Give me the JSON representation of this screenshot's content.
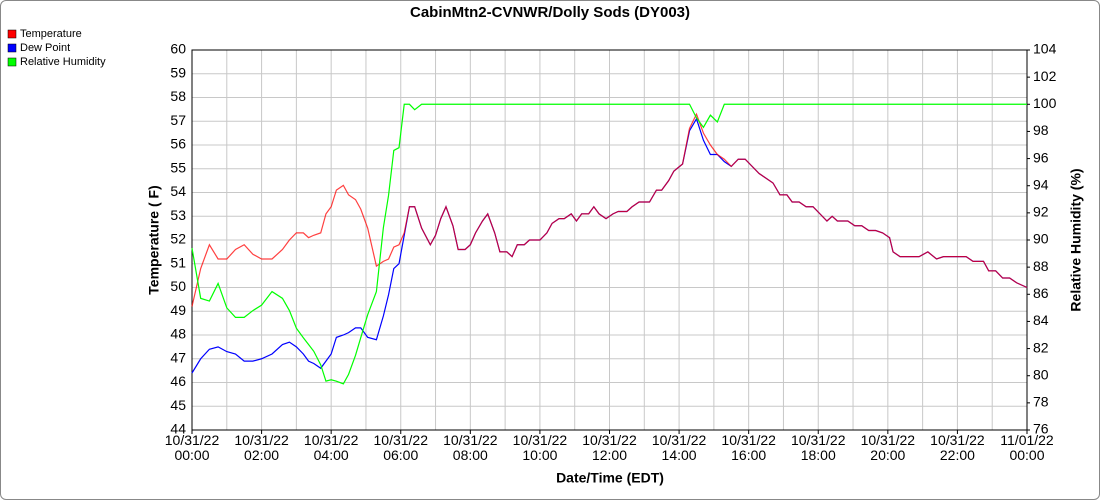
{
  "chart_data": {
    "type": "line",
    "title": "CabinMtn2-CVNWR/Dolly Sods (DY003)",
    "xlabel": "Date/Time (EDT)",
    "ylabel": "Temperature ( F)",
    "y2label": "Relative Humidity (%)",
    "xlim": [
      0,
      24
    ],
    "xticks": [
      {
        "value": 0,
        "label": "10/31/22 00:00"
      },
      {
        "value": 2,
        "label": "10/31/22 02:00"
      },
      {
        "value": 4,
        "label": "10/31/22 04:00"
      },
      {
        "value": 6,
        "label": "10/31/22 06:00"
      },
      {
        "value": 8,
        "label": "10/31/22 08:00"
      },
      {
        "value": 10,
        "label": "10/31/22 10:00"
      },
      {
        "value": 12,
        "label": "10/31/22 12:00"
      },
      {
        "value": 14,
        "label": "10/31/22 14:00"
      },
      {
        "value": 16,
        "label": "10/31/22 16:00"
      },
      {
        "value": 18,
        "label": "10/31/22 18:00"
      },
      {
        "value": 20,
        "label": "10/31/22 20:00"
      },
      {
        "value": 22,
        "label": "10/31/22 22:00"
      },
      {
        "value": 24,
        "label": "11/01/22 00:00"
      }
    ],
    "xminor_ticks": [
      1,
      3,
      5,
      7,
      9,
      11,
      13,
      15,
      17,
      19,
      21,
      23
    ],
    "ylim": [
      44,
      60
    ],
    "yticks": [
      44,
      45,
      46,
      47,
      48,
      49,
      50,
      51,
      52,
      53,
      54,
      55,
      56,
      57,
      58,
      59,
      60
    ],
    "y2lim": [
      76,
      104
    ],
    "y2ticks": [
      76,
      78,
      80,
      82,
      84,
      86,
      88,
      90,
      92,
      94,
      96,
      98,
      100,
      102,
      104
    ],
    "grid": true,
    "legend": "top-left",
    "x": [
      0,
      0.25,
      0.5,
      0.75,
      1,
      1.25,
      1.5,
      1.75,
      2,
      2.3,
      2.6,
      2.8,
      3.0,
      3.2,
      3.35,
      3.5,
      3.7,
      3.85,
      4.0,
      4.15,
      4.35,
      4.5,
      4.7,
      4.85,
      5.05,
      5.3,
      5.5,
      5.65,
      5.8,
      5.95,
      6.1,
      6.25,
      6.4,
      6.6,
      6.85,
      7.0,
      7.15,
      7.3,
      7.5,
      7.65,
      7.85,
      8.0,
      8.15,
      8.35,
      8.5,
      8.7,
      8.85,
      9.05,
      9.2,
      9.35,
      9.55,
      9.7,
      10.0,
      10.2,
      10.35,
      10.55,
      10.7,
      10.9,
      11.05,
      11.2,
      11.4,
      11.55,
      11.7,
      11.9,
      12.1,
      12.25,
      12.5,
      12.65,
      12.85,
      13.15,
      13.35,
      13.5,
      13.7,
      13.85,
      14.1,
      14.3,
      14.5,
      14.7,
      14.9,
      15.1,
      15.3,
      15.5,
      15.7,
      15.9,
      16.1,
      16.3,
      16.5,
      16.7,
      16.9,
      17.1,
      17.25,
      17.45,
      17.65,
      17.85,
      18.05,
      18.25,
      18.4,
      18.55,
      18.85,
      19.05,
      19.25,
      19.45,
      19.65,
      19.85,
      20.05,
      20.15,
      20.35,
      20.65,
      20.9,
      21.15,
      21.4,
      21.6,
      21.85,
      22.25,
      22.45,
      22.75,
      22.9,
      23.1,
      23.3,
      23.5,
      23.7,
      24
    ],
    "series": [
      {
        "name": "Dew Point",
        "color": "#0000ff",
        "values": [
          46.4,
          47.0,
          47.4,
          47.5,
          47.3,
          47.2,
          46.9,
          46.9,
          47.0,
          47.2,
          47.6,
          47.7,
          47.5,
          47.2,
          46.9,
          46.8,
          46.6,
          46.9,
          47.2,
          47.9,
          48.0,
          48.1,
          48.3,
          48.3,
          47.9,
          47.8,
          48.8,
          49.7,
          50.8,
          51.0,
          52.2,
          53.4,
          53.4,
          52.5,
          51.8,
          52.2,
          52.9,
          53.4,
          52.6,
          51.6,
          51.6,
          51.8,
          52.3,
          52.8,
          53.1,
          52.3,
          51.5,
          51.5,
          51.3,
          51.8,
          51.8,
          52.0,
          52.0,
          52.3,
          52.7,
          52.9,
          52.9,
          53.1,
          52.8,
          53.1,
          53.1,
          53.4,
          53.1,
          52.9,
          53.1,
          53.2,
          53.2,
          53.4,
          53.6,
          53.6,
          54.1,
          54.1,
          54.5,
          54.9,
          55.2,
          56.6,
          57.1,
          56.2,
          55.6,
          55.6,
          55.3,
          55.1,
          55.4,
          55.4,
          55.1,
          54.8,
          54.6,
          54.4,
          53.9,
          53.9,
          53.6,
          53.6,
          53.4,
          53.4,
          53.1,
          52.8,
          53.0,
          52.8,
          52.8,
          52.6,
          52.6,
          52.4,
          52.4,
          52.3,
          52.1,
          51.5,
          51.3,
          51.3,
          51.3,
          51.5,
          51.2,
          51.3,
          51.3,
          51.3,
          51.1,
          51.1,
          50.7,
          50.7,
          50.4,
          50.4,
          50.2,
          50.0
        ]
      },
      {
        "name": "Temperature",
        "color": "#ff0000",
        "values": [
          49.2,
          50.8,
          51.8,
          51.2,
          51.2,
          51.6,
          51.8,
          51.4,
          51.2,
          51.2,
          51.6,
          52.0,
          52.3,
          52.3,
          52.1,
          52.2,
          52.3,
          53.1,
          53.4,
          54.1,
          54.3,
          53.9,
          53.7,
          53.3,
          52.5,
          50.9,
          51.1,
          51.2,
          51.7,
          51.8,
          52.3,
          53.4,
          53.4,
          52.5,
          51.8,
          52.2,
          52.9,
          53.4,
          52.6,
          51.6,
          51.6,
          51.8,
          52.3,
          52.8,
          53.1,
          52.3,
          51.5,
          51.5,
          51.3,
          51.8,
          51.8,
          52.0,
          52.0,
          52.3,
          52.7,
          52.9,
          52.9,
          53.1,
          52.8,
          53.1,
          53.1,
          53.4,
          53.1,
          52.9,
          53.1,
          53.2,
          53.2,
          53.4,
          53.6,
          53.6,
          54.1,
          54.1,
          54.5,
          54.9,
          55.2,
          56.7,
          57.3,
          56.5,
          56.0,
          55.6,
          55.4,
          55.1,
          55.4,
          55.4,
          55.1,
          54.8,
          54.6,
          54.4,
          53.9,
          53.9,
          53.6,
          53.6,
          53.4,
          53.4,
          53.1,
          52.8,
          53.0,
          52.8,
          52.8,
          52.6,
          52.6,
          52.4,
          52.4,
          52.3,
          52.1,
          51.5,
          51.3,
          51.3,
          51.3,
          51.5,
          51.2,
          51.3,
          51.3,
          51.3,
          51.1,
          51.1,
          50.7,
          50.7,
          50.4,
          50.4,
          50.2,
          50.0
        ]
      },
      {
        "name": "Relative Humidity",
        "color": "#00ff00",
        "axis": "y2",
        "values": [
          89.4,
          85.7,
          85.5,
          86.8,
          85.0,
          84.3,
          84.3,
          84.8,
          85.2,
          86.2,
          85.7,
          84.8,
          83.5,
          82.8,
          82.3,
          81.8,
          80.8,
          79.6,
          79.7,
          79.6,
          79.4,
          80.1,
          81.5,
          82.8,
          84.5,
          86.2,
          90.9,
          93.3,
          96.6,
          96.8,
          100,
          100,
          99.6,
          100,
          100,
          100,
          100,
          100,
          100,
          100,
          100,
          100,
          100,
          100,
          100,
          100,
          100,
          100,
          100,
          100,
          100,
          100,
          100,
          100,
          100,
          100,
          100,
          100,
          100,
          100,
          100,
          100,
          100,
          100,
          100,
          100,
          100,
          100,
          100,
          100,
          100,
          100,
          100,
          100,
          100,
          100,
          99.0,
          98.3,
          99.2,
          98.7,
          100,
          100,
          100,
          100,
          100,
          100,
          100,
          100,
          100,
          100,
          100,
          100,
          100,
          100,
          100,
          100,
          100,
          100,
          100,
          100,
          100,
          100,
          100,
          100,
          100,
          100,
          100,
          100,
          100,
          100,
          100,
          100,
          100,
          100,
          100,
          100,
          100,
          100,
          100,
          100,
          100,
          100
        ]
      }
    ],
    "legend_order": [
      1,
      0,
      2
    ]
  }
}
